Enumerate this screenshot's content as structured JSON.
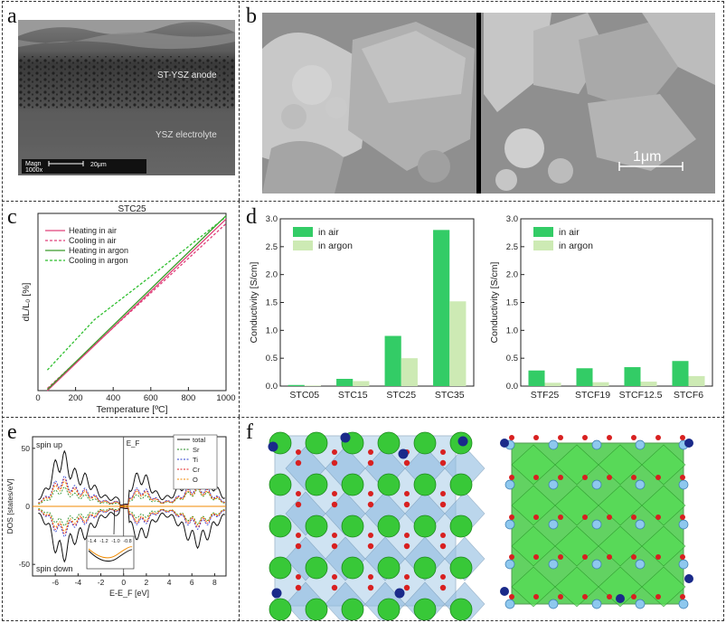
{
  "panel_labels": {
    "a": "a",
    "b": "b",
    "c": "c",
    "d": "d",
    "e": "e",
    "f": "f"
  },
  "panel_a": {
    "anode_label": "ST-YSZ anode",
    "electrolyte_label": "YSZ electrolyte",
    "mag_label": "Magn",
    "mag_value": "1000x",
    "scale_label": "20μm"
  },
  "panel_b": {
    "scale_label": "1μm"
  },
  "chart_data": [
    {
      "id": "c",
      "type": "line",
      "title": "STC25",
      "xlabel": "Temperature [ºC]",
      "ylabel": "dL/L₀ [%]",
      "xlim": [
        0,
        1000
      ],
      "ylim": [
        0,
        1.55
      ],
      "xticks": [
        0,
        200,
        400,
        600,
        800,
        1000
      ],
      "legend_position": "top-left",
      "series": [
        {
          "name": "Heating in air",
          "style": "solid",
          "color": "#e0407a",
          "x": [
            50,
            1000
          ],
          "y": [
            0.0,
            1.5
          ]
        },
        {
          "name": "Cooling in air",
          "style": "dashed",
          "color": "#e0407a",
          "x": [
            50,
            1000
          ],
          "y": [
            0.02,
            1.46
          ]
        },
        {
          "name": "Heating in argon",
          "style": "solid",
          "color": "#3a9a2a",
          "x": [
            50,
            1000
          ],
          "y": [
            0.01,
            1.53
          ]
        },
        {
          "name": "Cooling in argon",
          "style": "dashed",
          "color": "#2fbf2f",
          "x": [
            50,
            300,
            600,
            1000
          ],
          "y": [
            0.18,
            0.62,
            1.0,
            1.52
          ]
        }
      ]
    },
    {
      "id": "d-left",
      "type": "bar",
      "ylabel": "Conductivity [S/cm]",
      "ylim": [
        0,
        3.0
      ],
      "yticks": [
        "0.0",
        "0.5",
        "1.0",
        "1.5",
        "2.0",
        "2.5",
        "3.0"
      ],
      "categories": [
        "STC05",
        "STC15",
        "STC25",
        "STC35"
      ],
      "legend_position": "top-left",
      "series": [
        {
          "name": "in air",
          "color": "#33cc66",
          "values": [
            0.02,
            0.13,
            0.9,
            2.8
          ]
        },
        {
          "name": "in argon",
          "color": "#cdeab4",
          "values": [
            0.01,
            0.09,
            0.5,
            1.52
          ]
        }
      ]
    },
    {
      "id": "d-right",
      "type": "bar",
      "ylabel": "Conductivity [S/cm]",
      "ylim": [
        0,
        3.0
      ],
      "yticks": [
        "0.0",
        "0.5",
        "1.0",
        "1.5",
        "2.0",
        "2.5",
        "3.0"
      ],
      "categories": [
        "STF25",
        "STCF19",
        "STCF12.5",
        "STCF6"
      ],
      "legend_position": "top-left",
      "series": [
        {
          "name": "in air",
          "color": "#33cc66",
          "values": [
            0.28,
            0.32,
            0.34,
            0.45
          ]
        },
        {
          "name": "in argon",
          "color": "#cdeab4",
          "values": [
            0.06,
            0.07,
            0.08,
            0.18
          ]
        }
      ]
    },
    {
      "id": "e",
      "type": "line",
      "xlabel": "E-E_F [eV]",
      "ylabel": "DOS [states/eV]",
      "xlim": [
        -8,
        9
      ],
      "ylim": [
        -60,
        60
      ],
      "xticks": [
        "-6",
        "-4",
        "-2",
        "0",
        "2",
        "4",
        "6",
        "8"
      ],
      "yticks": [
        "50",
        "0",
        "-50"
      ],
      "annotations": [
        "spin up",
        "spin down",
        "E_F"
      ],
      "inset_xticks": [
        "-1.4",
        "-1.2",
        "-1.0",
        "-0.8"
      ],
      "series": [
        {
          "name": "total",
          "color": "#111111"
        },
        {
          "name": "Sr",
          "color": "#1f8a1f"
        },
        {
          "name": "Ti",
          "color": "#2a3fd0"
        },
        {
          "name": "Cr",
          "color": "#e02020"
        },
        {
          "name": "O",
          "color": "#f08a00"
        }
      ]
    }
  ]
}
